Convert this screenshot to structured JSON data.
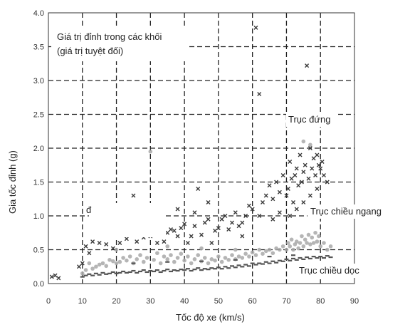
{
  "chart_data": {
    "type": "scatter",
    "title": "",
    "xlabel": "Tốc độ xe (km/s)",
    "ylabel": "Gia tốc đỉnh (g)",
    "xlim": [
      0,
      90
    ],
    "ylim": [
      0,
      4.0
    ],
    "x_ticks": [
      "0",
      "10",
      "20",
      "30",
      "40",
      "50",
      "60",
      "70",
      "80",
      "90"
    ],
    "y_ticks": [
      "0.0",
      "0.5",
      "1.0",
      "1.5",
      "2.0",
      "2.5",
      "3.0",
      "3.5",
      "4.0"
    ],
    "grid": true,
    "colors": {
      "vertical": "#3a3a3a",
      "horizontal": "#a8a8a8",
      "longitudinal": "#555555"
    },
    "annotations": {
      "block_peak_line1": "Giá trị đỉnh trong các khối",
      "block_peak_line2": "(giá trị tuyệt đối)",
      "vertical": "Trục đứng",
      "horizontal": "Trục chiều ngang",
      "longitudinal": "Trục chiều dọc",
      "mark_d": "đ"
    },
    "series": [
      {
        "key": "vertical",
        "marker": "x",
        "points": [
          [
            1,
            0.1
          ],
          [
            2,
            0.12
          ],
          [
            3,
            0.08
          ],
          [
            9,
            0.25
          ],
          [
            10,
            0.3
          ],
          [
            11,
            0.55
          ],
          [
            12,
            0.45
          ],
          [
            13,
            0.62
          ],
          [
            15,
            0.6
          ],
          [
            17,
            0.58
          ],
          [
            19,
            0.52
          ],
          [
            21,
            0.6
          ],
          [
            23,
            0.66
          ],
          [
            25,
            1.3
          ],
          [
            26,
            0.62
          ],
          [
            28,
            0.68
          ],
          [
            30,
            0.7
          ],
          [
            32,
            0.6
          ],
          [
            34,
            0.62
          ],
          [
            35,
            0.75
          ],
          [
            36,
            0.8
          ],
          [
            37,
            0.78
          ],
          [
            38,
            0.7
          ],
          [
            39,
            0.82
          ],
          [
            40,
            0.88
          ],
          [
            41,
            0.6
          ],
          [
            42,
            0.7
          ],
          [
            43,
            0.85
          ],
          [
            44,
            1.4
          ],
          [
            45,
            0.72
          ],
          [
            46,
            0.9
          ],
          [
            47,
            0.95
          ],
          [
            48,
            0.6
          ],
          [
            49,
            0.78
          ],
          [
            50,
            0.82
          ],
          [
            51,
            0.95
          ],
          [
            52,
            1.0
          ],
          [
            53,
            0.8
          ],
          [
            54,
            0.9
          ],
          [
            55,
            1.05
          ],
          [
            56,
            0.85
          ],
          [
            57,
            0.9
          ],
          [
            58,
            1.0
          ],
          [
            59,
            1.15
          ],
          [
            60,
            1.1
          ],
          [
            61,
            3.78
          ],
          [
            62,
            2.8
          ],
          [
            63,
            1.2
          ],
          [
            64,
            1.3
          ],
          [
            65,
            1.45
          ],
          [
            66,
            1.25
          ],
          [
            67,
            1.5
          ],
          [
            68,
            1.35
          ],
          [
            69,
            1.6
          ],
          [
            70,
            1.3
          ],
          [
            70.5,
            1.4
          ],
          [
            71,
            1.8
          ],
          [
            71.5,
            1.55
          ],
          [
            72,
            1.2
          ],
          [
            72.5,
            1.6
          ],
          [
            73,
            1.7
          ],
          [
            73.5,
            1.45
          ],
          [
            74,
            1.9
          ],
          [
            74.5,
            1.5
          ],
          [
            75,
            1.65
          ],
          [
            75.5,
            1.75
          ],
          [
            76,
            3.22
          ],
          [
            76.5,
            1.55
          ],
          [
            77,
            2.0
          ],
          [
            77.5,
            1.7
          ],
          [
            78,
            1.85
          ],
          [
            78.5,
            1.6
          ],
          [
            79,
            1.9
          ],
          [
            79.5,
            1.75
          ],
          [
            80,
            1.7
          ],
          [
            80.5,
            1.8
          ],
          [
            81,
            1.6
          ],
          [
            82,
            1.5
          ],
          [
            71,
            1.0
          ],
          [
            73,
            1.1
          ],
          [
            75,
            1.2
          ],
          [
            77,
            1.3
          ],
          [
            79,
            1.4
          ],
          [
            68,
            1.05
          ],
          [
            66,
            0.95
          ],
          [
            62,
            1.0
          ],
          [
            57,
            0.7
          ],
          [
            47,
            1.2
          ],
          [
            43,
            1.05
          ],
          [
            38,
            1.1
          ]
        ]
      },
      {
        "key": "horizontal",
        "marker": "dot",
        "points": [
          [
            10,
            0.15
          ],
          [
            11,
            0.2
          ],
          [
            12,
            0.3
          ],
          [
            13,
            0.22
          ],
          [
            14,
            0.25
          ],
          [
            15,
            0.28
          ],
          [
            16,
            0.3
          ],
          [
            17,
            0.26
          ],
          [
            18,
            0.35
          ],
          [
            19,
            0.33
          ],
          [
            20,
            0.3
          ],
          [
            21,
            0.32
          ],
          [
            22,
            0.38
          ],
          [
            23,
            0.34
          ],
          [
            24,
            0.4
          ],
          [
            25,
            0.3
          ],
          [
            26,
            0.36
          ],
          [
            27,
            0.42
          ],
          [
            28,
            0.32
          ],
          [
            29,
            0.38
          ],
          [
            30,
            1.95
          ],
          [
            31,
            0.35
          ],
          [
            32,
            0.45
          ],
          [
            33,
            0.3
          ],
          [
            34,
            0.4
          ],
          [
            35,
            0.36
          ],
          [
            36,
            0.42
          ],
          [
            37,
            0.32
          ],
          [
            38,
            0.38
          ],
          [
            39,
            0.44
          ],
          [
            40,
            0.34
          ],
          [
            41,
            0.4
          ],
          [
            42,
            0.3
          ],
          [
            43,
            0.36
          ],
          [
            44,
            0.42
          ],
          [
            45,
            0.33
          ],
          [
            46,
            0.38
          ],
          [
            47,
            0.3
          ],
          [
            48,
            0.36
          ],
          [
            49,
            0.34
          ],
          [
            50,
            0.4
          ],
          [
            51,
            0.32
          ],
          [
            52,
            0.38
          ],
          [
            53,
            0.35
          ],
          [
            54,
            0.42
          ],
          [
            55,
            0.36
          ],
          [
            56,
            0.4
          ],
          [
            57,
            0.38
          ],
          [
            58,
            0.44
          ],
          [
            59,
            0.4
          ],
          [
            60,
            0.46
          ],
          [
            61,
            0.42
          ],
          [
            62,
            0.5
          ],
          [
            63,
            0.44
          ],
          [
            64,
            0.48
          ],
          [
            65,
            0.5
          ],
          [
            66,
            0.45
          ],
          [
            67,
            0.52
          ],
          [
            68,
            0.5
          ],
          [
            69,
            0.55
          ],
          [
            70,
            0.5
          ],
          [
            70.5,
            0.6
          ],
          [
            71,
            0.55
          ],
          [
            71.5,
            0.65
          ],
          [
            72,
            0.5
          ],
          [
            72.5,
            0.58
          ],
          [
            73,
            0.62
          ],
          [
            73.5,
            0.52
          ],
          [
            74,
            0.6
          ],
          [
            74.5,
            0.7
          ],
          [
            75,
            0.55
          ],
          [
            75.5,
            0.65
          ],
          [
            76,
            0.6
          ],
          [
            76.5,
            0.72
          ],
          [
            77,
            0.58
          ],
          [
            77.5,
            0.68
          ],
          [
            78,
            0.6
          ],
          [
            78.5,
            0.75
          ],
          [
            79,
            0.62
          ],
          [
            79.5,
            0.7
          ],
          [
            80,
            0.55
          ],
          [
            81,
            0.6
          ],
          [
            82,
            0.5
          ],
          [
            83,
            0.55
          ],
          [
            75,
            2.1
          ],
          [
            77,
            2.05
          ],
          [
            20,
            0.5
          ],
          [
            35,
            0.55
          ],
          [
            45,
            0.52
          ],
          [
            55,
            0.5
          ]
        ]
      },
      {
        "key": "longitudinal",
        "marker": "dash",
        "points": [
          [
            10,
            0.1
          ],
          [
            11,
            0.12
          ],
          [
            12,
            0.14
          ],
          [
            13,
            0.12
          ],
          [
            14,
            0.15
          ],
          [
            15,
            0.13
          ],
          [
            16,
            0.16
          ],
          [
            17,
            0.14
          ],
          [
            18,
            0.15
          ],
          [
            19,
            0.17
          ],
          [
            20,
            0.15
          ],
          [
            21,
            0.16
          ],
          [
            22,
            0.18
          ],
          [
            23,
            0.16
          ],
          [
            24,
            0.17
          ],
          [
            25,
            0.19
          ],
          [
            26,
            0.16
          ],
          [
            27,
            0.18
          ],
          [
            28,
            0.2
          ],
          [
            29,
            0.17
          ],
          [
            30,
            0.19
          ],
          [
            31,
            0.18
          ],
          [
            32,
            0.2
          ],
          [
            33,
            0.17
          ],
          [
            34,
            0.19
          ],
          [
            35,
            0.21
          ],
          [
            36,
            0.18
          ],
          [
            37,
            0.2
          ],
          [
            38,
            0.19
          ],
          [
            39,
            0.21
          ],
          [
            40,
            0.2
          ],
          [
            41,
            0.22
          ],
          [
            42,
            0.19
          ],
          [
            43,
            0.21
          ],
          [
            44,
            0.23
          ],
          [
            45,
            0.2
          ],
          [
            46,
            0.22
          ],
          [
            47,
            0.21
          ],
          [
            48,
            0.23
          ],
          [
            49,
            0.22
          ],
          [
            50,
            0.24
          ],
          [
            51,
            0.22
          ],
          [
            52,
            0.25
          ],
          [
            53,
            0.23
          ],
          [
            54,
            0.26
          ],
          [
            55,
            0.24
          ],
          [
            56,
            0.27
          ],
          [
            57,
            0.25
          ],
          [
            58,
            0.28
          ],
          [
            59,
            0.26
          ],
          [
            60,
            0.3
          ],
          [
            61,
            0.28
          ],
          [
            62,
            0.3
          ],
          [
            63,
            0.29
          ],
          [
            64,
            0.32
          ],
          [
            65,
            0.3
          ],
          [
            66,
            0.33
          ],
          [
            67,
            0.31
          ],
          [
            68,
            0.34
          ],
          [
            69,
            0.33
          ],
          [
            70,
            0.36
          ],
          [
            71,
            0.34
          ],
          [
            72,
            0.37
          ],
          [
            73,
            0.35
          ],
          [
            74,
            0.38
          ],
          [
            75,
            0.36
          ],
          [
            76,
            0.39
          ],
          [
            77,
            0.37
          ],
          [
            78,
            0.4
          ],
          [
            79,
            0.38
          ],
          [
            80,
            0.4
          ],
          [
            81,
            0.38
          ],
          [
            82,
            0.41
          ],
          [
            83,
            0.39
          ],
          [
            25,
            0.3
          ],
          [
            35,
            0.32
          ],
          [
            45,
            0.33
          ],
          [
            55,
            0.35
          ],
          [
            65,
            0.4
          ],
          [
            72,
            0.42
          ]
        ]
      }
    ]
  }
}
